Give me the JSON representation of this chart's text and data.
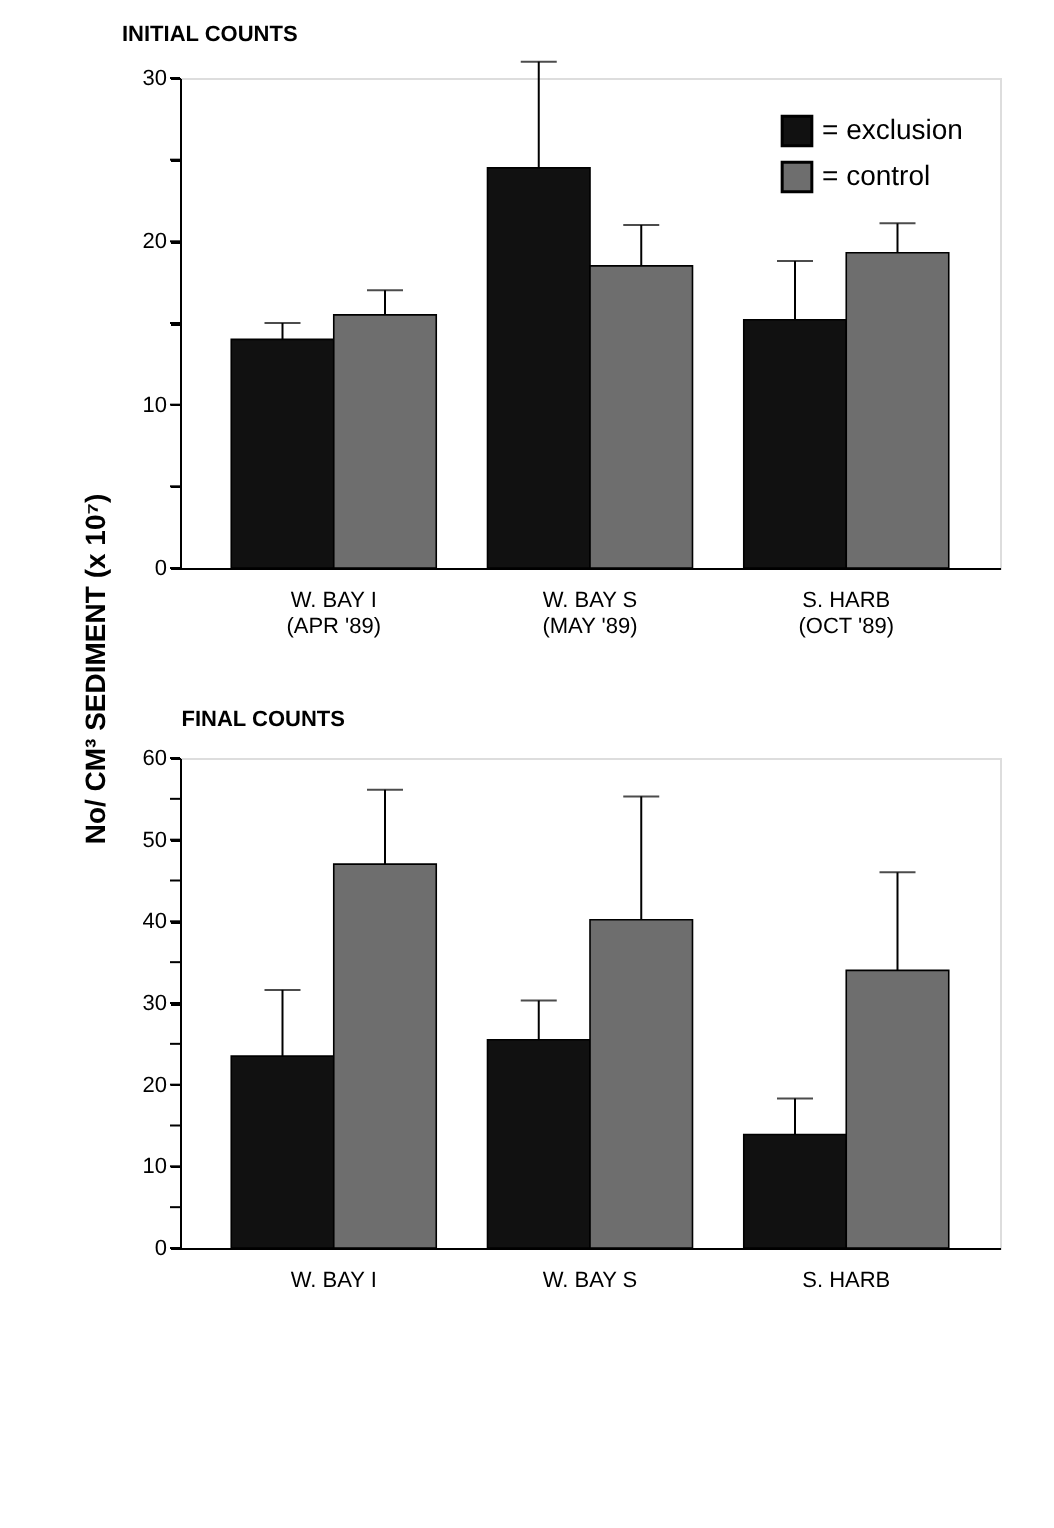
{
  "chart_data": [
    {
      "type": "bar",
      "title": "INITIAL COUNTS",
      "ylabel": "No/ CM³ SEDIMENT (x 10⁷)",
      "categories": [
        "W. BAY I\n(APR '89)",
        "W. BAY S\n(MAY '89)",
        "S. HARB\n(OCT '89)"
      ],
      "series": [
        {
          "name": "= exclusion",
          "color": "#111111",
          "values": [
            14,
            24.5,
            15.2
          ],
          "errors": [
            [
              14,
              15
            ],
            [
              24.5,
              31
            ],
            [
              15.2,
              18.8
            ]
          ]
        },
        {
          "name": "= control",
          "color": "#6e6e6e",
          "values": [
            15.5,
            18.5,
            19.3
          ],
          "errors": [
            [
              15.5,
              17
            ],
            [
              18.5,
              21
            ],
            [
              19.3,
              21.1
            ]
          ]
        }
      ],
      "ylim": [
        0,
        30
      ],
      "yticks": [
        0,
        {
          "value": 5,
          "label": null
        },
        10,
        {
          "value": 15,
          "label": null
        },
        20,
        {
          "value": 25,
          "label": null
        },
        30
      ],
      "grid": false,
      "legend": "top right"
    },
    {
      "type": "bar",
      "title": "FINAL COUNTS",
      "categories": [
        "W. BAY I",
        "W. BAY S",
        "S. HARB"
      ],
      "series": [
        {
          "name": "= exclusion",
          "color": "#111111",
          "values": [
            23.5,
            25.5,
            13.9
          ],
          "errors": [
            [
              23.5,
              31.6
            ],
            [
              25.5,
              30.3
            ],
            [
              13.9,
              18.3
            ]
          ]
        },
        {
          "name": "= control",
          "color": "#6e6e6e",
          "values": [
            47,
            40.2,
            34
          ],
          "errors": [
            [
              47,
              56.1
            ],
            [
              40.2,
              55.3
            ],
            [
              34,
              46
            ]
          ]
        }
      ],
      "ylim": [
        0,
        60
      ],
      "yticks": [
        0,
        {
          "value": 5,
          "label": null
        },
        10,
        {
          "value": 15,
          "label": null
        },
        20,
        {
          "value": 25,
          "label": null
        },
        30,
        {
          "value": 35,
          "label": null
        },
        40,
        {
          "value": 45,
          "label": null
        },
        50,
        {
          "value": 55,
          "label": null
        },
        60
      ],
      "grid": false,
      "legend": false
    }
  ]
}
